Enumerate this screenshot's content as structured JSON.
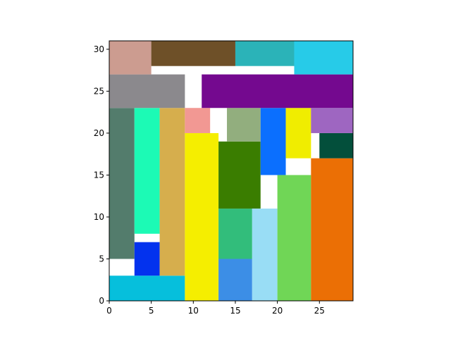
{
  "chart_data": {
    "type": "rectangle-packing",
    "title": "",
    "xlabel": "",
    "ylabel": "",
    "xlim": [
      0,
      29
    ],
    "ylim": [
      0,
      31
    ],
    "xticks": [
      0,
      5,
      10,
      15,
      20,
      25
    ],
    "yticks": [
      0,
      5,
      10,
      15,
      20,
      25,
      30
    ],
    "grid": false,
    "legend": "none",
    "rectangles": [
      {
        "x": 0,
        "y": 0,
        "w": 9,
        "h": 3,
        "color": "#06bfdc"
      },
      {
        "x": 0,
        "y": 5,
        "w": 3,
        "h": 18,
        "color": "#537c6c"
      },
      {
        "x": 3,
        "y": 3,
        "w": 3,
        "h": 4,
        "color": "#0332ee"
      },
      {
        "x": 3,
        "y": 8,
        "w": 3,
        "h": 15,
        "color": "#1cfab5"
      },
      {
        "x": 6,
        "y": 3,
        "w": 3,
        "h": 20,
        "color": "#d6ae4d"
      },
      {
        "x": 9,
        "y": 0,
        "w": 4,
        "h": 20,
        "color": "#f5ee00"
      },
      {
        "x": 9,
        "y": 20,
        "w": 3,
        "h": 3,
        "color": "#f29893"
      },
      {
        "x": 13,
        "y": 0,
        "w": 4,
        "h": 5,
        "color": "#3c8ee6"
      },
      {
        "x": 13,
        "y": 5,
        "w": 4,
        "h": 6,
        "color": "#32bd7b"
      },
      {
        "x": 13,
        "y": 11,
        "w": 5,
        "h": 8,
        "color": "#3a7d00"
      },
      {
        "x": 14,
        "y": 19,
        "w": 4,
        "h": 4,
        "color": "#92ae7e"
      },
      {
        "x": 17,
        "y": 0,
        "w": 3,
        "h": 11,
        "color": "#99ddf5"
      },
      {
        "x": 18,
        "y": 15,
        "w": 3,
        "h": 8,
        "color": "#0b6ffe"
      },
      {
        "x": 20,
        "y": 0,
        "w": 4,
        "h": 15,
        "color": "#70d656"
      },
      {
        "x": 21,
        "y": 17,
        "w": 3,
        "h": 6,
        "color": "#f0ed00"
      },
      {
        "x": 24,
        "y": 0,
        "w": 5,
        "h": 17,
        "color": "#eb6f05"
      },
      {
        "x": 25,
        "y": 17,
        "w": 4,
        "h": 3,
        "color": "#034f3b"
      },
      {
        "x": 24,
        "y": 20,
        "w": 5,
        "h": 3,
        "color": "#9e66c1"
      },
      {
        "x": 0,
        "y": 23,
        "w": 9,
        "h": 4,
        "color": "#8b898d"
      },
      {
        "x": 11,
        "y": 23,
        "w": 18,
        "h": 4,
        "color": "#74098f"
      },
      {
        "x": 0,
        "y": 27,
        "w": 5,
        "h": 4,
        "color": "#cc9c90"
      },
      {
        "x": 5,
        "y": 28,
        "w": 10,
        "h": 3,
        "color": "#6e5028"
      },
      {
        "x": 15,
        "y": 28,
        "w": 7,
        "h": 3,
        "color": "#2bb3b8"
      },
      {
        "x": 22,
        "y": 27,
        "w": 7,
        "h": 4,
        "color": "#27cbe8"
      }
    ]
  }
}
